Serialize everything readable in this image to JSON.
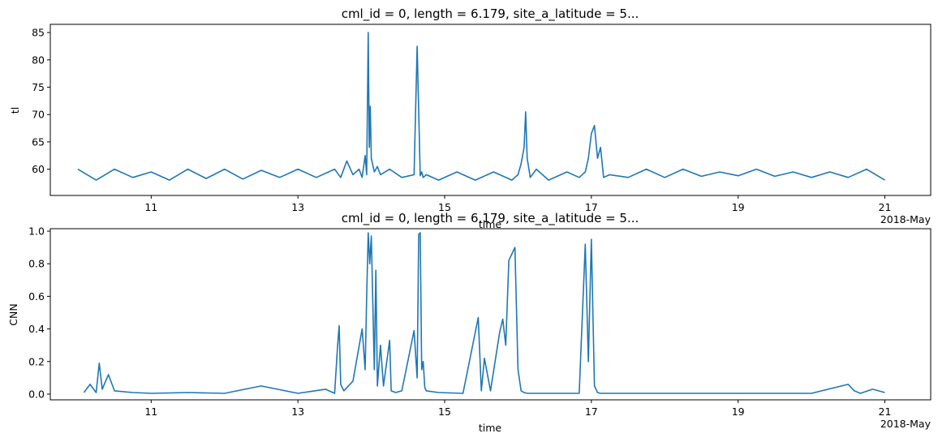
{
  "chart_data": [
    {
      "type": "line",
      "title": "cml_id = 0, length = 6.179, site_a_latitude = 5...",
      "xlabel": "time",
      "ylabel": "tl",
      "x_offset_label": "2018-May",
      "xlim": [
        "2018-05-09T15:00",
        "2018-05-21T15:00"
      ],
      "ylim": [
        55.2,
        86.5
      ],
      "x_ticks": [
        {
          "date": "2018-05-11",
          "label": "11"
        },
        {
          "date": "2018-05-13",
          "label": "13"
        },
        {
          "date": "2018-05-15",
          "label": "15"
        },
        {
          "date": "2018-05-17",
          "label": "17"
        },
        {
          "date": "2018-05-19",
          "label": "19"
        },
        {
          "date": "2018-05-21",
          "label": "21"
        }
      ],
      "y_ticks": [
        60,
        65,
        70,
        75,
        80,
        85
      ],
      "grid": false,
      "color": "#1f77b4",
      "series": [
        {
          "x": [
            "2018-05-10T00:00",
            "2018-05-10T06:00",
            "2018-05-10T12:00",
            "2018-05-10T18:00",
            "2018-05-11T00:00",
            "2018-05-11T06:00",
            "2018-05-11T12:00",
            "2018-05-11T18:00",
            "2018-05-12T00:00",
            "2018-05-12T06:00",
            "2018-05-12T12:00",
            "2018-05-12T18:00",
            "2018-05-13T00:00",
            "2018-05-13T06:00",
            "2018-05-13T12:00",
            "2018-05-13T14:00",
            "2018-05-13T16:00",
            "2018-05-13T18:00",
            "2018-05-13T20:00",
            "2018-05-13T21:00",
            "2018-05-13T22:00",
            "2018-05-13T22:30",
            "2018-05-13T23:00",
            "2018-05-13T23:20",
            "2018-05-13T23:40",
            "2018-05-14T00:00",
            "2018-05-14T01:00",
            "2018-05-14T02:00",
            "2018-05-14T03:00",
            "2018-05-14T06:00",
            "2018-05-14T10:00",
            "2018-05-14T14:00",
            "2018-05-14T15:00",
            "2018-05-14T16:00",
            "2018-05-14T16:30",
            "2018-05-14T17:00",
            "2018-05-14T18:00",
            "2018-05-14T22:00",
            "2018-05-15T04:00",
            "2018-05-15T10:00",
            "2018-05-15T16:00",
            "2018-05-15T22:00",
            "2018-05-16T00:00",
            "2018-05-16T01:00",
            "2018-05-16T02:00",
            "2018-05-16T02:30",
            "2018-05-16T03:00",
            "2018-05-16T04:00",
            "2018-05-16T06:00",
            "2018-05-16T10:00",
            "2018-05-16T16:00",
            "2018-05-16T20:00",
            "2018-05-16T22:00",
            "2018-05-16T23:00",
            "2018-05-17T00:00",
            "2018-05-17T01:00",
            "2018-05-17T02:00",
            "2018-05-17T03:00",
            "2018-05-17T04:00",
            "2018-05-17T06:00",
            "2018-05-17T12:00",
            "2018-05-17T18:00",
            "2018-05-18T00:00",
            "2018-05-18T06:00",
            "2018-05-18T12:00",
            "2018-05-18T18:00",
            "2018-05-19T00:00",
            "2018-05-19T06:00",
            "2018-05-19T12:00",
            "2018-05-19T18:00",
            "2018-05-20T00:00",
            "2018-05-20T06:00",
            "2018-05-20T12:00",
            "2018-05-20T18:00",
            "2018-05-21T00:00"
          ],
          "y": [
            60.0,
            58.0,
            60.0,
            58.5,
            59.5,
            58.0,
            60.0,
            58.3,
            60.0,
            58.2,
            59.8,
            58.5,
            60.0,
            58.5,
            60.0,
            58.5,
            61.5,
            59.0,
            60.0,
            58.5,
            62.5,
            59.0,
            85.0,
            64.0,
            71.5,
            62.0,
            59.5,
            60.5,
            59.0,
            60.0,
            58.5,
            59.0,
            82.5,
            58.8,
            59.5,
            58.5,
            59.0,
            58.0,
            59.5,
            58.0,
            59.5,
            58.0,
            59.0,
            61.0,
            64.0,
            70.5,
            62.0,
            58.5,
            60.0,
            58.0,
            59.5,
            58.5,
            59.5,
            62.0,
            66.5,
            68.0,
            62.0,
            64.0,
            58.5,
            59.0,
            58.5,
            60.0,
            58.5,
            60.0,
            58.7,
            59.5,
            58.8,
            60.0,
            58.7,
            59.5,
            58.5,
            59.5,
            58.5,
            60.0,
            58.0
          ]
        }
      ]
    },
    {
      "type": "line",
      "title": "cml_id = 0, length = 6.179, site_a_latitude = 5...",
      "xlabel": "time",
      "ylabel": "CNN",
      "x_offset_label": "2018-May",
      "xlim": [
        "2018-05-09T15:00",
        "2018-05-21T15:00"
      ],
      "ylim": [
        -0.035,
        1.015
      ],
      "x_ticks": [
        {
          "date": "2018-05-11",
          "label": "11"
        },
        {
          "date": "2018-05-13",
          "label": "13"
        },
        {
          "date": "2018-05-15",
          "label": "15"
        },
        {
          "date": "2018-05-17",
          "label": "17"
        },
        {
          "date": "2018-05-19",
          "label": "19"
        },
        {
          "date": "2018-05-21",
          "label": "21"
        }
      ],
      "y_ticks": [
        0.0,
        0.2,
        0.4,
        0.6,
        0.8,
        1.0
      ],
      "y_tick_labels": [
        "0.0",
        "0.2",
        "0.4",
        "0.6",
        "0.8",
        "1.0"
      ],
      "grid": false,
      "color": "#1f77b4",
      "series": [
        {
          "x": [
            "2018-05-10T02:00",
            "2018-05-10T04:00",
            "2018-05-10T06:00",
            "2018-05-10T07:00",
            "2018-05-10T08:00",
            "2018-05-10T10:00",
            "2018-05-10T12:00",
            "2018-05-10T18:00",
            "2018-05-11T00:00",
            "2018-05-11T12:00",
            "2018-05-12T00:00",
            "2018-05-12T12:00",
            "2018-05-13T00:00",
            "2018-05-13T09:00",
            "2018-05-13T12:00",
            "2018-05-13T13:00",
            "2018-05-13T13:30",
            "2018-05-13T14:00",
            "2018-05-13T15:00",
            "2018-05-13T18:00",
            "2018-05-13T21:00",
            "2018-05-13T22:00",
            "2018-05-13T22:30",
            "2018-05-13T23:00",
            "2018-05-13T23:30",
            "2018-05-14T00:00",
            "2018-05-14T01:00",
            "2018-05-14T01:30",
            "2018-05-14T02:00",
            "2018-05-14T03:00",
            "2018-05-14T04:00",
            "2018-05-14T06:00",
            "2018-05-14T06:30",
            "2018-05-14T08:00",
            "2018-05-14T10:00",
            "2018-05-14T14:00",
            "2018-05-14T15:00",
            "2018-05-14T15:30",
            "2018-05-14T16:00",
            "2018-05-14T16:30",
            "2018-05-14T17:00",
            "2018-05-14T17:30",
            "2018-05-14T18:00",
            "2018-05-14T22:00",
            "2018-05-15T06:00",
            "2018-05-15T11:00",
            "2018-05-15T12:00",
            "2018-05-15T13:00",
            "2018-05-15T15:00",
            "2018-05-15T18:00",
            "2018-05-15T19:00",
            "2018-05-15T20:00",
            "2018-05-15T21:00",
            "2018-05-15T23:00",
            "2018-05-16T00:00",
            "2018-05-16T01:00",
            "2018-05-16T02:00",
            "2018-05-16T03:00",
            "2018-05-16T04:00",
            "2018-05-16T05:00",
            "2018-05-16T06:00",
            "2018-05-16T08:00",
            "2018-05-16T12:00",
            "2018-05-16T20:00",
            "2018-05-16T22:00",
            "2018-05-16T23:00",
            "2018-05-17T00:00",
            "2018-05-17T01:00",
            "2018-05-17T02:00",
            "2018-05-17T03:00",
            "2018-05-17T03:30",
            "2018-05-17T04:00",
            "2018-05-17T05:00",
            "2018-05-17T08:00",
            "2018-05-17T16:00",
            "2018-05-18T00:00",
            "2018-05-18T12:00",
            "2018-05-19T00:00",
            "2018-05-19T12:00",
            "2018-05-20T00:00",
            "2018-05-20T12:00",
            "2018-05-20T14:00",
            "2018-05-20T16:00",
            "2018-05-20T20:00",
            "2018-05-21T00:00"
          ],
          "y": [
            0.01,
            0.06,
            0.01,
            0.19,
            0.03,
            0.12,
            0.02,
            0.01,
            0.005,
            0.01,
            0.005,
            0.05,
            0.005,
            0.03,
            0.005,
            0.3,
            0.42,
            0.06,
            0.02,
            0.08,
            0.4,
            0.15,
            0.6,
            0.99,
            0.8,
            0.97,
            0.15,
            0.76,
            0.05,
            0.3,
            0.05,
            0.33,
            0.02,
            0.01,
            0.02,
            0.39,
            0.1,
            0.98,
            0.99,
            0.15,
            0.2,
            0.04,
            0.02,
            0.01,
            0.005,
            0.47,
            0.02,
            0.22,
            0.02,
            0.38,
            0.46,
            0.3,
            0.82,
            0.9,
            0.15,
            0.02,
            0.01,
            0.005,
            0.005,
            0.005,
            0.005,
            0.005,
            0.005,
            0.005,
            0.92,
            0.2,
            0.95,
            0.05,
            0.01,
            0.005,
            0.005,
            0.005,
            0.005,
            0.005,
            0.005,
            0.005,
            0.005,
            0.005,
            0.005,
            0.005,
            0.06,
            0.02,
            0.005,
            0.03,
            0.01
          ]
        }
      ]
    }
  ]
}
